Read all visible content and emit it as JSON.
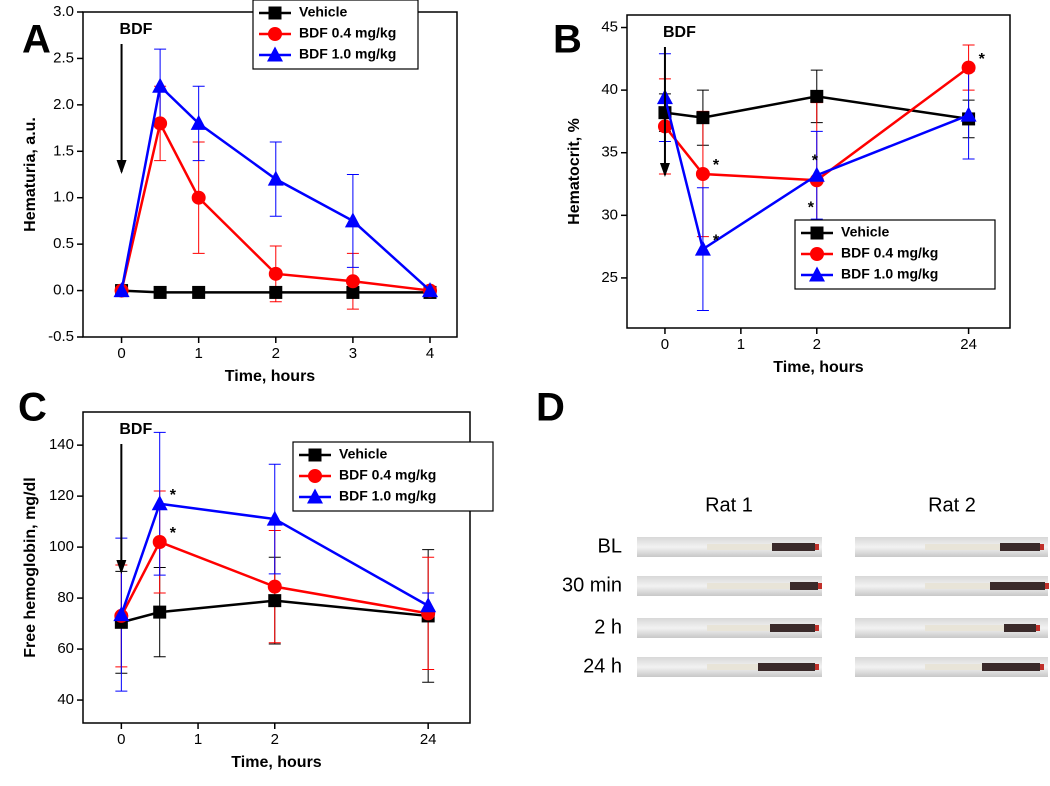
{
  "chart_data": [
    {
      "type": "line",
      "panel": "A",
      "xlabel": "Time, hours",
      "ylabel": "Hematuria, a.u.",
      "xscale": "linear",
      "x": [
        0,
        0.5,
        1,
        2,
        3,
        4
      ],
      "xlim": [
        -0.5,
        4.35
      ],
      "xticks": [
        0,
        1,
        2,
        3,
        4
      ],
      "ylim": [
        -0.5,
        3.0
      ],
      "yticks": [
        -0.5,
        {
          "value": 0,
          "label": "0.0"
        },
        0.5,
        {
          "value": 1,
          "label": "1.0"
        },
        1.5,
        {
          "value": 2,
          "label": "2.0"
        },
        2.5,
        {
          "value": 3,
          "label": "3.0"
        }
      ],
      "legend": "top",
      "series": [
        {
          "name": "Vehicle",
          "color": "#000000",
          "marker": "square",
          "values": [
            0,
            -0.02,
            -0.02,
            -0.02,
            -0.02,
            -0.02
          ],
          "errors": [
            0,
            0,
            0,
            0,
            0,
            0
          ]
        },
        {
          "name": "BDF 0.4 mg/kg",
          "color": "#ff0000",
          "marker": "circle",
          "values": [
            0,
            1.8,
            1.0,
            0.18,
            0.1,
            0
          ],
          "errors": [
            0,
            0.4,
            0.6,
            0.3,
            0.3,
            0
          ]
        },
        {
          "name": "BDF 1.0 mg/kg",
          "color": "#0000ff",
          "marker": "triangle",
          "values": [
            0,
            2.2,
            1.8,
            1.2,
            0.75,
            0
          ],
          "errors": [
            0,
            0.4,
            0.4,
            0.4,
            0.5,
            0
          ]
        }
      ],
      "annotations": [
        {
          "text": "BDF",
          "x": 0
        }
      ]
    },
    {
      "type": "line",
      "panel": "B",
      "xlabel": "Time, hours",
      "ylabel": "Hematocrit, %",
      "xscale": "broken",
      "x": [
        0,
        0.5,
        2,
        24
      ],
      "xlim": [
        -0.5,
        30
      ],
      "xticks": [
        0,
        1,
        2,
        24
      ],
      "ylim": [
        21,
        46
      ],
      "yticks": [
        25,
        30,
        35,
        40,
        45
      ],
      "legend": "lower right",
      "series": [
        {
          "name": "Vehicle",
          "color": "#000000",
          "marker": "square",
          "values": [
            38.2,
            37.8,
            39.5,
            37.7
          ],
          "errors": [
            1.5,
            2.2,
            2.1,
            1.5
          ]
        },
        {
          "name": "BDF 0.4 mg/kg",
          "color": "#ff0000",
          "marker": "circle",
          "values": [
            37.1,
            33.3,
            32.8,
            41.8
          ],
          "errors": [
            3.8,
            5,
            6.2,
            1.8
          ]
        },
        {
          "name": "BDF 1.0 mg/kg",
          "color": "#0000ff",
          "marker": "triangle",
          "values": [
            39.4,
            27.3,
            33.2,
            38
          ],
          "errors": [
            3.5,
            4.9,
            3.5,
            3.5
          ]
        }
      ],
      "annotations": [
        {
          "text": "BDF",
          "x": 0
        },
        {
          "text": "*",
          "series": 1,
          "index": 1,
          "placement": "right"
        },
        {
          "text": "*",
          "series": 2,
          "index": 1,
          "placement": "right"
        },
        {
          "text": "*",
          "series": 2,
          "index": 2,
          "placement": "above"
        },
        {
          "text": "*",
          "series": 1,
          "index": 2,
          "placement": "below"
        },
        {
          "text": "*",
          "series": 1,
          "index": 3,
          "placement": "right"
        }
      ]
    },
    {
      "type": "line",
      "panel": "C",
      "xlabel": "Time, hours",
      "ylabel": "Free hemoglobin, mg/dl",
      "xscale": "broken",
      "x": [
        0,
        0.5,
        2,
        24
      ],
      "xlim": [
        -0.5,
        30
      ],
      "xticks": [
        0,
        1,
        2,
        24
      ],
      "ylim": [
        31,
        153
      ],
      "yticks": [
        40,
        60,
        80,
        100,
        120,
        140
      ],
      "legend": "upper right",
      "series": [
        {
          "name": "Vehicle",
          "color": "#000000",
          "marker": "square",
          "values": [
            70.5,
            74.5,
            79,
            73
          ],
          "errors": [
            20,
            17.5,
            17,
            26
          ]
        },
        {
          "name": "BDF 0.4 mg/kg",
          "color": "#ff0000",
          "marker": "circle",
          "values": [
            73,
            102,
            84.5,
            74
          ],
          "errors": [
            20,
            20,
            22,
            22
          ]
        },
        {
          "name": "BDF 1.0 mg/kg",
          "color": "#0000ff",
          "marker": "triangle",
          "values": [
            73.5,
            117,
            111,
            77
          ],
          "errors": [
            30,
            28,
            21.5,
            5
          ]
        }
      ],
      "annotations": [
        {
          "text": "BDF",
          "x": 0
        },
        {
          "text": "*",
          "series": 2,
          "index": 1,
          "placement": "right"
        },
        {
          "text": "*",
          "series": 1,
          "index": 1,
          "placement": "right"
        }
      ]
    }
  ],
  "panel_d": {
    "panel": "D",
    "columns": [
      "Rat 1",
      "Rat 2"
    ],
    "rows": [
      "BL",
      "30 min",
      "2 h",
      "24 h"
    ]
  }
}
